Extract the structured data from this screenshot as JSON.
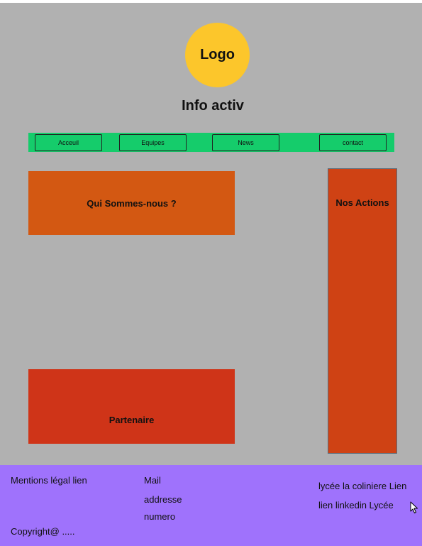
{
  "header": {
    "logo_text": "Logo",
    "site_title": "Info activ"
  },
  "nav": {
    "items": [
      "Acceuil",
      "Equipes",
      "News",
      "contact"
    ],
    "bg_color": "#15cc6b"
  },
  "sections": {
    "about": "Qui Sommes-nous ?",
    "partners": "Partenaire",
    "actions": "Nos Actions"
  },
  "footer": {
    "mentions": "Mentions légal lien",
    "copyright": "Copyright@ .....",
    "mail": "Mail",
    "address": "addresse",
    "number": "numero",
    "school_link": "lycée la coliniere Lien",
    "linkedin": "lien linkedin Lycée",
    "bg_color": "#9f72fc"
  },
  "colors": {
    "page_bg": "#b1b1b1",
    "logo": "#fcc62b",
    "about_block": "#d35812",
    "partners_block": "#cf3418",
    "actions_block": "#cf4214"
  }
}
